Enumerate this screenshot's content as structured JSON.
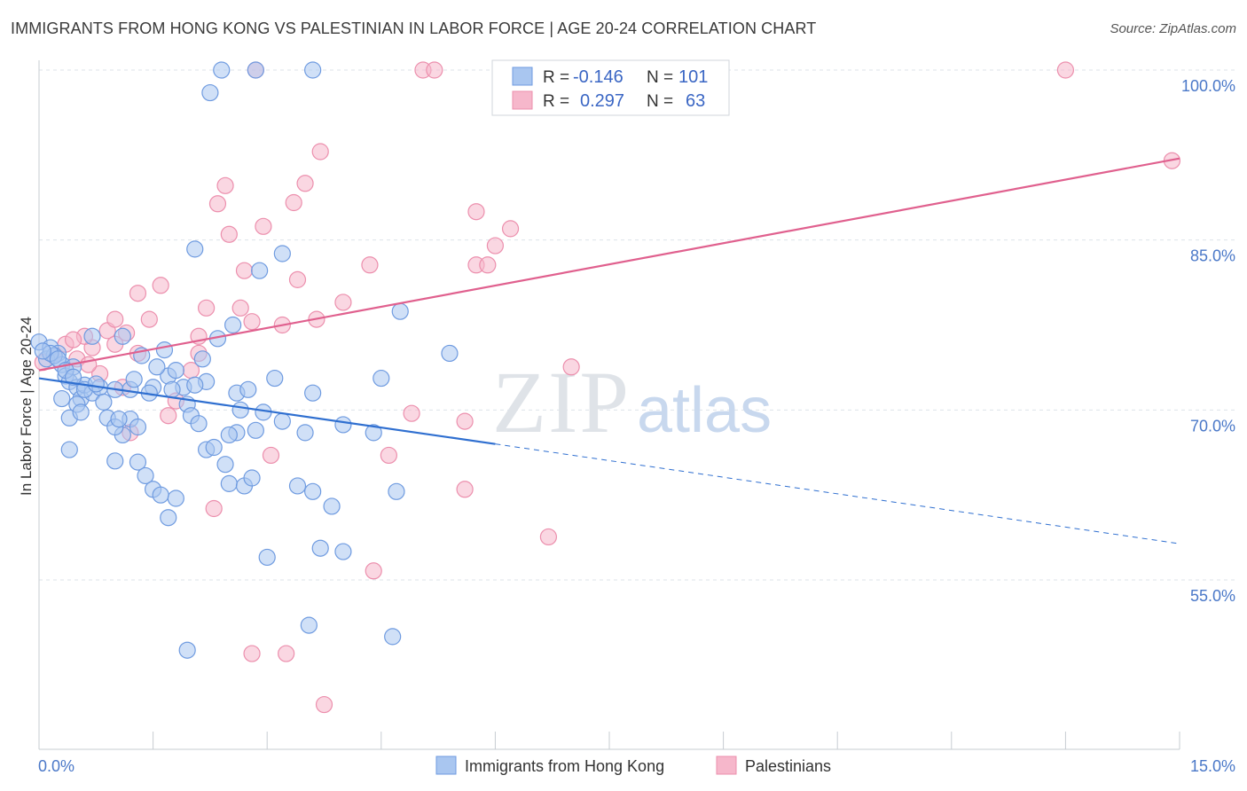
{
  "title": "IMMIGRANTS FROM HONG KONG VS PALESTINIAN IN LABOR FORCE | AGE 20-24 CORRELATION CHART",
  "source": "Source: ZipAtlas.com",
  "watermark": {
    "zip": "ZIP",
    "atlas": "atlas"
  },
  "colors": {
    "blue_fill": "#a9c6f0",
    "blue_stroke": "#6f9be0",
    "blue_line": "#2f6fd0",
    "pink_fill": "#f6b7cb",
    "pink_stroke": "#ec8fad",
    "pink_line": "#e0608e",
    "tick_text": "#4a78c8",
    "grid": "#dde3ea"
  },
  "legend": {
    "rows": [
      {
        "r_label": "R =",
        "r_value": "-0.146",
        "n_label": "N =",
        "n_value": "101",
        "series": "blue"
      },
      {
        "r_label": "R =",
        "r_value": "0.297",
        "n_label": "N =",
        "n_value": "63",
        "series": "pink"
      }
    ]
  },
  "chart_data": {
    "type": "scatter",
    "title": "IMMIGRANTS FROM HONG KONG VS PALESTINIAN IN LABOR FORCE | AGE 20-24 CORRELATION CHART",
    "xlabel": "",
    "ylabel": "In Labor Force | Age 20-24",
    "xlim": [
      0,
      15
    ],
    "ylim": [
      42,
      101.5
    ],
    "x_tick_labels": [
      "0.0%",
      "15.0%"
    ],
    "y_ticks": [
      55,
      70,
      85,
      100
    ],
    "y_tick_labels": [
      "55.0%",
      "70.0%",
      "85.0%",
      "100.0%"
    ],
    "grid": true,
    "legend_position": "top-center",
    "series": [
      {
        "name": "Immigrants from Hong Kong",
        "color": "blue",
        "trend": {
          "x0": 0,
          "y0": 72.8,
          "x1": 6,
          "y1": 67.0,
          "dash_to_x": 15,
          "dash_to_y": 58.2
        },
        "points": [
          [
            0.0,
            76.0
          ],
          [
            0.15,
            75.5
          ],
          [
            0.25,
            75.0
          ],
          [
            0.1,
            74.5
          ],
          [
            0.3,
            74.0
          ],
          [
            0.2,
            74.8
          ],
          [
            0.35,
            73.0
          ],
          [
            0.4,
            72.5
          ],
          [
            0.45,
            73.8
          ],
          [
            0.5,
            72.0
          ],
          [
            0.55,
            71.0
          ],
          [
            0.6,
            72.2
          ],
          [
            0.3,
            71.0
          ],
          [
            0.5,
            70.5
          ],
          [
            0.7,
            71.5
          ],
          [
            0.8,
            72.0
          ],
          [
            1.0,
            71.8
          ],
          [
            1.2,
            71.8
          ],
          [
            1.5,
            72.0
          ],
          [
            1.7,
            73.0
          ],
          [
            0.4,
            69.3
          ],
          [
            0.55,
            69.8
          ],
          [
            0.9,
            69.3
          ],
          [
            1.2,
            69.2
          ],
          [
            1.3,
            68.5
          ],
          [
            1.1,
            67.8
          ],
          [
            1.0,
            68.5
          ],
          [
            0.4,
            66.5
          ],
          [
            1.0,
            65.5
          ],
          [
            1.3,
            65.4
          ],
          [
            1.4,
            64.2
          ],
          [
            1.5,
            63.0
          ],
          [
            1.6,
            62.5
          ],
          [
            1.7,
            60.5
          ],
          [
            1.8,
            62.2
          ],
          [
            0.7,
            76.5
          ],
          [
            1.1,
            76.5
          ],
          [
            1.35,
            74.8
          ],
          [
            1.55,
            73.8
          ],
          [
            1.65,
            75.3
          ],
          [
            1.8,
            73.5
          ],
          [
            1.9,
            72.0
          ],
          [
            2.15,
            74.5
          ],
          [
            2.2,
            72.5
          ],
          [
            2.35,
            76.3
          ],
          [
            2.55,
            77.5
          ],
          [
            1.95,
            70.5
          ],
          [
            2.0,
            69.5
          ],
          [
            2.1,
            68.8
          ],
          [
            2.2,
            66.5
          ],
          [
            2.45,
            65.2
          ],
          [
            2.5,
            63.5
          ],
          [
            2.6,
            68.0
          ],
          [
            2.7,
            63.3
          ],
          [
            2.8,
            64.0
          ],
          [
            2.6,
            71.5
          ],
          [
            2.75,
            71.8
          ],
          [
            2.65,
            70.0
          ],
          [
            2.85,
            68.2
          ],
          [
            2.95,
            69.8
          ],
          [
            3.1,
            72.8
          ],
          [
            3.2,
            69.0
          ],
          [
            3.6,
            71.5
          ],
          [
            3.5,
            68.0
          ],
          [
            3.4,
            63.3
          ],
          [
            3.6,
            62.8
          ],
          [
            3.85,
            61.5
          ],
          [
            4.0,
            68.7
          ],
          [
            4.5,
            72.8
          ],
          [
            4.4,
            68.0
          ],
          [
            4.7,
            62.8
          ],
          [
            5.4,
            75.0
          ],
          [
            4.75,
            78.7
          ],
          [
            2.9,
            82.3
          ],
          [
            3.2,
            83.8
          ],
          [
            2.05,
            84.2
          ],
          [
            2.25,
            98.0
          ],
          [
            2.4,
            100.0
          ],
          [
            2.85,
            100.0
          ],
          [
            3.6,
            100.0
          ],
          [
            3.0,
            57.0
          ],
          [
            3.7,
            57.8
          ],
          [
            4.0,
            57.5
          ],
          [
            3.55,
            51.0
          ],
          [
            4.65,
            50.0
          ],
          [
            1.95,
            48.8
          ],
          [
            0.15,
            75.0
          ],
          [
            0.05,
            75.2
          ],
          [
            0.25,
            74.5
          ],
          [
            0.35,
            73.5
          ],
          [
            0.45,
            72.9
          ],
          [
            0.6,
            71.8
          ],
          [
            0.75,
            72.3
          ],
          [
            0.85,
            70.7
          ],
          [
            1.05,
            69.2
          ],
          [
            1.25,
            72.7
          ],
          [
            1.45,
            71.5
          ],
          [
            1.75,
            71.8
          ],
          [
            2.05,
            72.2
          ],
          [
            2.3,
            66.7
          ],
          [
            2.5,
            67.8
          ]
        ]
      },
      {
        "name": "Palestinians",
        "color": "pink",
        "trend": {
          "x0": 0,
          "y0": 73.5,
          "x1": 15,
          "y1": 92.2
        },
        "points": [
          [
            0.05,
            74.2
          ],
          [
            0.2,
            74.8
          ],
          [
            0.35,
            75.8
          ],
          [
            0.5,
            74.5
          ],
          [
            0.7,
            75.5
          ],
          [
            0.9,
            77.0
          ],
          [
            1.0,
            75.8
          ],
          [
            1.15,
            76.8
          ],
          [
            0.6,
            76.5
          ],
          [
            0.8,
            73.2
          ],
          [
            1.1,
            72.0
          ],
          [
            1.3,
            75.0
          ],
          [
            1.45,
            78.0
          ],
          [
            1.6,
            81.0
          ],
          [
            1.3,
            80.3
          ],
          [
            1.8,
            70.8
          ],
          [
            1.7,
            69.5
          ],
          [
            2.0,
            73.5
          ],
          [
            2.1,
            75.0
          ],
          [
            2.2,
            79.0
          ],
          [
            2.1,
            76.5
          ],
          [
            1.2,
            68.0
          ],
          [
            2.3,
            61.3
          ],
          [
            2.35,
            88.2
          ],
          [
            2.45,
            89.8
          ],
          [
            2.5,
            85.5
          ],
          [
            2.7,
            82.3
          ],
          [
            2.65,
            79.0
          ],
          [
            2.8,
            77.8
          ],
          [
            2.95,
            86.2
          ],
          [
            3.05,
            66.0
          ],
          [
            3.2,
            77.5
          ],
          [
            3.4,
            81.5
          ],
          [
            3.35,
            88.3
          ],
          [
            3.5,
            90.0
          ],
          [
            3.65,
            78.0
          ],
          [
            3.7,
            92.8
          ],
          [
            4.0,
            79.5
          ],
          [
            4.35,
            82.8
          ],
          [
            4.4,
            55.8
          ],
          [
            4.6,
            66.0
          ],
          [
            4.9,
            69.7
          ],
          [
            5.05,
            100.0
          ],
          [
            5.2,
            100.0
          ],
          [
            5.6,
            63.0
          ],
          [
            5.6,
            69.0
          ],
          [
            5.75,
            87.5
          ],
          [
            5.75,
            82.8
          ],
          [
            5.9,
            82.8
          ],
          [
            6.0,
            84.5
          ],
          [
            6.2,
            86.0
          ],
          [
            6.7,
            58.8
          ],
          [
            7.0,
            73.8
          ],
          [
            7.9,
            100.0
          ],
          [
            13.5,
            100.0
          ],
          [
            14.9,
            92.0
          ],
          [
            2.85,
            100.0
          ],
          [
            2.8,
            48.5
          ],
          [
            3.25,
            48.5
          ],
          [
            3.75,
            44.0
          ],
          [
            0.45,
            76.2
          ],
          [
            0.65,
            74.0
          ],
          [
            1.0,
            78.0
          ]
        ]
      }
    ]
  },
  "bottom_legend": {
    "items": [
      {
        "label": "Immigrants from Hong Kong",
        "series": "blue"
      },
      {
        "label": "Palestinians",
        "series": "pink"
      }
    ]
  }
}
